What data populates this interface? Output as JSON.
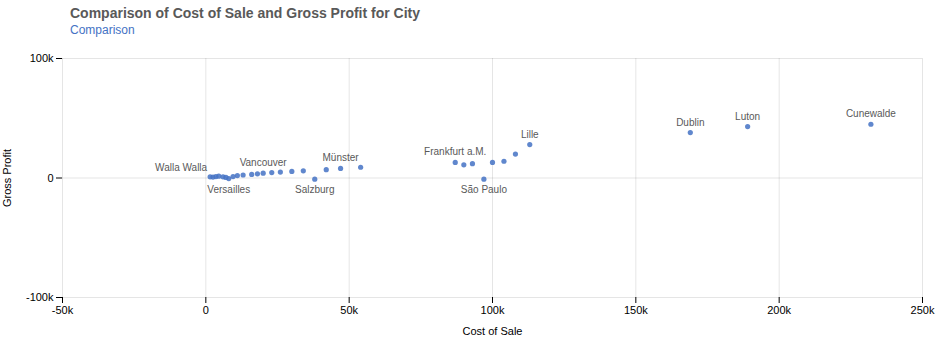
{
  "chart_data": {
    "type": "scatter",
    "title": "Comparison of Cost of Sale and Gross Profit for City",
    "subtitle": "Comparison",
    "xlabel": "Cost of Sale",
    "ylabel": "Gross Profit",
    "x": [
      1500,
      2500,
      3500,
      4500,
      6000,
      7000,
      8000,
      9500,
      11000,
      13000,
      16000,
      18000,
      20000,
      23000,
      26000,
      30000,
      34000,
      38000,
      42000,
      47000,
      54000,
      87000,
      90000,
      93000,
      97000,
      100000,
      104000,
      108000,
      113000,
      169000,
      189000,
      232000
    ],
    "values": [
      1000,
      800,
      1200,
      1500,
      1000,
      500,
      -500,
      1200,
      2000,
      2500,
      3000,
      3500,
      4000,
      4500,
      5000,
      5500,
      6000,
      -1000,
      7000,
      8000,
      9000,
      13000,
      11000,
      12000,
      -1000,
      13000,
      14000,
      20000,
      28000,
      38000,
      43000,
      45000
    ],
    "color": "#4472c4",
    "xlim": [
      -50000,
      250000
    ],
    "ylim": [
      -100000,
      100000
    ],
    "xticks": [
      {
        "value": -50000,
        "label": "-50k"
      },
      0,
      {
        "value": 50000,
        "label": "50k"
      },
      {
        "value": 100000,
        "label": "100k"
      },
      {
        "value": 150000,
        "label": "150k"
      },
      {
        "value": 200000,
        "label": "200k"
      },
      {
        "value": 250000,
        "label": "250k"
      }
    ],
    "yticks": [
      {
        "value": -100000,
        "label": "-100k"
      },
      0,
      {
        "value": 100000,
        "label": "100k"
      }
    ],
    "grid": true,
    "annotations": [
      {
        "text": "Walla Walla",
        "x": 1500,
        "y": 1000
      },
      {
        "text": "Versailles",
        "x": 8000,
        "y": -500
      },
      {
        "text": "Vancouver",
        "x": 20000,
        "y": 4000
      },
      {
        "text": "Salzburg",
        "x": 38000,
        "y": -1000
      },
      {
        "text": "Münster",
        "x": 47000,
        "y": 8000
      },
      {
        "text": "Frankfurt a.M.",
        "x": 87000,
        "y": 13000
      },
      {
        "text": "São Paulo",
        "x": 97000,
        "y": -1000
      },
      {
        "text": "Lille",
        "x": 113000,
        "y": 28000
      },
      {
        "text": "Dublin",
        "x": 169000,
        "y": 38000
      },
      {
        "text": "Luton",
        "x": 189000,
        "y": 43000
      },
      {
        "text": "Cunewalde",
        "x": 232000,
        "y": 45000
      }
    ]
  }
}
